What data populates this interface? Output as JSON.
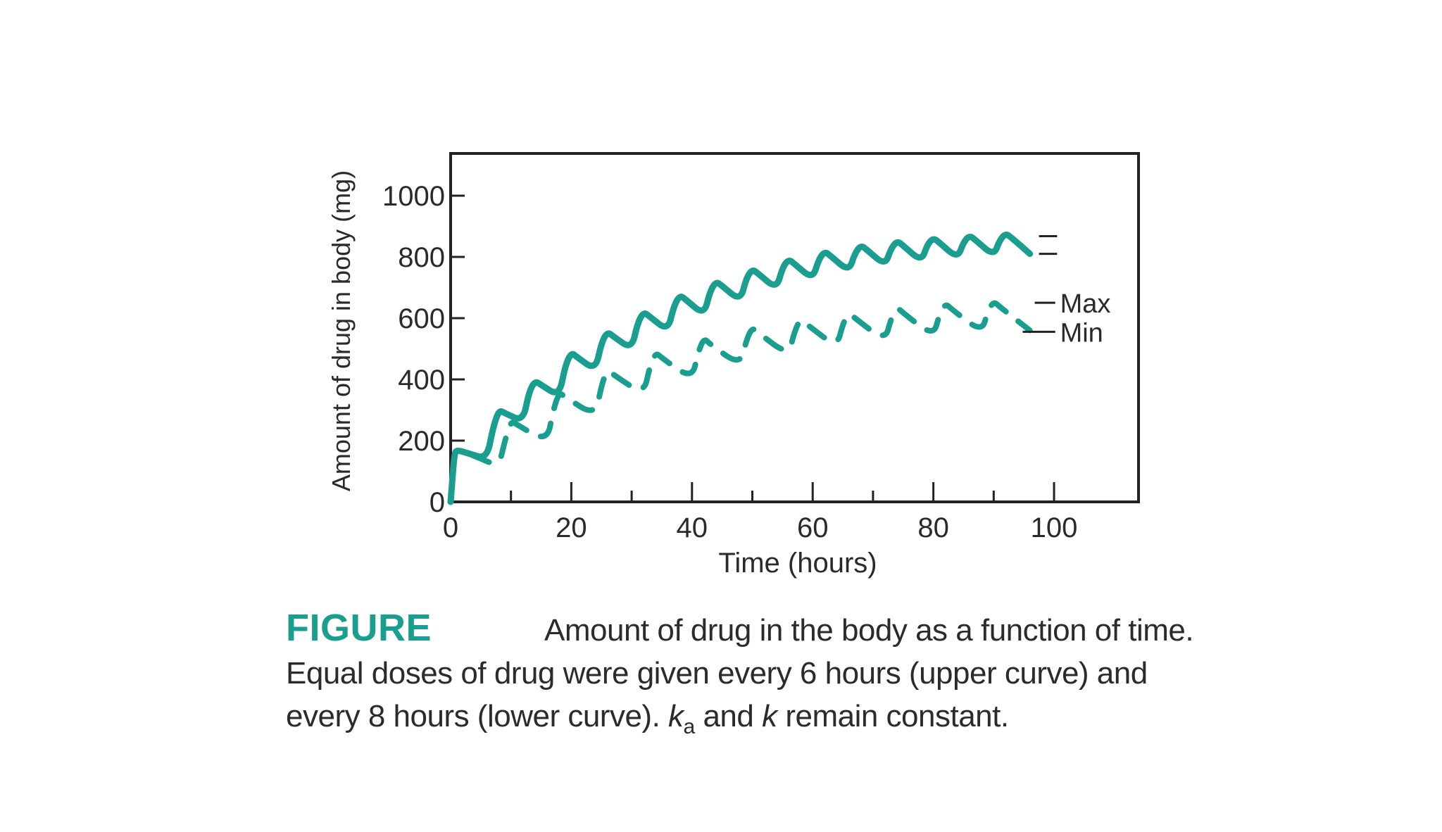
{
  "chart_data": {
    "type": "line",
    "xlabel": "Time (hours)",
    "ylabel": "Amount of drug in body (mg)",
    "xlim": [
      0,
      114
    ],
    "ylim": [
      0,
      1000
    ],
    "x_ticks": [
      0,
      20,
      40,
      60,
      80,
      100
    ],
    "x_minor_ticks": [
      10,
      30,
      50,
      70,
      90
    ],
    "y_ticks": [
      0,
      200,
      400,
      600,
      800,
      1000
    ],
    "grid": false,
    "legend": "annotations on right",
    "color": "#1a9e8f",
    "annotations": [
      "Max",
      "Min"
    ],
    "series": [
      {
        "style": "solid",
        "dose_interval_hours": 6,
        "x": [
          0,
          0.6,
          1,
          3,
          6,
          7,
          8,
          9,
          12,
          13,
          14,
          15,
          18,
          19,
          20,
          21,
          24,
          25,
          26,
          27,
          30,
          31,
          32,
          33,
          36,
          37,
          38,
          39,
          42,
          43,
          44,
          45,
          48,
          49,
          50,
          51,
          54,
          55,
          56,
          57,
          60,
          61,
          62,
          63,
          66,
          67,
          68,
          69,
          72,
          73,
          74,
          75,
          78,
          79,
          80,
          81,
          84,
          85,
          86,
          87,
          90,
          91,
          92,
          93,
          96
        ],
        "y": [
          0,
          155,
          170,
          158,
          140,
          240,
          300,
          290,
          262,
          360,
          395,
          382,
          345,
          445,
          488,
          472,
          430,
          520,
          555,
          540,
          498,
          585,
          620,
          605,
          558,
          640,
          675,
          660,
          610,
          688,
          720,
          705,
          656,
          730,
          760,
          745,
          695,
          765,
          792,
          777,
          727,
          792,
          818,
          803,
          752,
          812,
          838,
          823,
          772,
          828,
          852,
          837,
          785,
          840,
          862,
          847,
          795,
          848,
          870,
          855,
          803,
          855,
          877,
          862,
          810
        ]
      },
      {
        "style": "dashed",
        "dose_interval_hours": 8,
        "x": [
          0,
          0.6,
          1,
          4,
          8,
          9,
          10,
          11,
          16,
          17,
          18,
          19,
          24,
          25,
          26,
          27,
          32,
          33,
          34,
          35,
          40,
          41,
          42,
          43,
          48,
          49,
          50,
          51,
          56,
          57,
          58,
          59,
          64,
          65,
          66,
          67,
          72,
          73,
          74,
          75,
          80,
          81,
          82,
          83,
          88,
          89,
          90,
          91,
          96
        ],
        "y": [
          0,
          155,
          170,
          150,
          115,
          200,
          265,
          252,
          195,
          300,
          358,
          342,
          280,
          382,
          432,
          415,
          350,
          442,
          488,
          470,
          400,
          488,
          535,
          515,
          445,
          528,
          570,
          552,
          478,
          558,
          598,
          580,
          505,
          582,
          618,
          600,
          525,
          600,
          635,
          617,
          540,
          612,
          648,
          630,
          553,
          622,
          655,
          637,
          560
        ]
      }
    ]
  },
  "caption": {
    "label": "FIGURE",
    "text": "Amount of drug in the body as a function of time. Equal doses of drug were given every 6 hours (upper curve) and every 8 hours (lower curve).",
    "ka_k": "a",
    "ka_base": "k",
    "ka_and": " and ",
    "k_var": "k",
    "tail": " remain constant."
  }
}
